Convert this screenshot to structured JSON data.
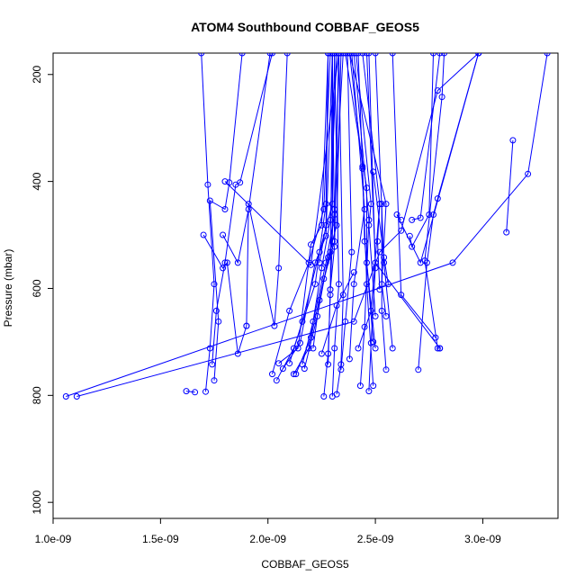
{
  "chart_data": {
    "type": "line",
    "title": "ATOM4 Southbound COBBAF_GEOS5",
    "xlabel": "COBBAF_GEOS5",
    "ylabel": "Pressure (mbar)",
    "xlim": [
      1e-09,
      3.35e-09
    ],
    "ylim": [
      1030,
      160
    ],
    "y_reversed": true,
    "grid": false,
    "legend": "none",
    "x_ticks": [
      {
        "value": 1e-09,
        "label": "1.0e-09"
      },
      {
        "value": 1.5e-09,
        "label": "1.5e-09"
      },
      {
        "value": 2e-09,
        "label": "2.0e-09"
      },
      {
        "value": 2.5e-09,
        "label": "2.5e-09"
      },
      {
        "value": 3e-09,
        "label": "3.0e-09"
      }
    ],
    "y_ticks": [
      {
        "value": 200,
        "label": "200"
      },
      {
        "value": 400,
        "label": "400"
      },
      {
        "value": 600,
        "label": "600"
      },
      {
        "value": 800,
        "label": "800"
      },
      {
        "value": 1000,
        "label": "1000"
      }
    ],
    "series_color": "#0000ff",
    "series": [
      {
        "x": [
          1.06e-09,
          2.86e-09,
          3.21e-09,
          3.3e-09
        ],
        "y": [
          802,
          552,
          386,
          160
        ]
      },
      {
        "x": [
          1.11e-09,
          2.4e-09,
          2.52e-09,
          2.62e-09,
          2.79e-09,
          2.98e-09
        ],
        "y": [
          802,
          662,
          532,
          492,
          230,
          160
        ]
      },
      {
        "x": [
          1.62e-09,
          1.66e-09
        ],
        "y": [
          792,
          794
        ]
      },
      {
        "x": [
          3.11e-09,
          3.14e-09
        ],
        "y": [
          495,
          323
        ]
      },
      {
        "x": [
          1.71e-09,
          1.73e-09,
          1.75e-09,
          1.72e-09,
          1.69e-09
        ],
        "y": [
          793,
          712,
          592,
          406,
          160
        ]
      },
      {
        "x": [
          1.75e-09,
          1.77e-09,
          1.73e-09,
          1.8e-09,
          1.82e-09,
          1.88e-09
        ],
        "y": [
          772,
          662,
          436,
          452,
          402,
          160
        ]
      },
      {
        "x": [
          1.74e-09,
          1.76e-09,
          1.8e-09,
          1.85e-09,
          1.87e-09,
          2.02e-09
        ],
        "y": [
          742,
          642,
          552,
          406,
          402,
          160
        ]
      },
      {
        "x": [
          1.7e-09,
          1.79e-09,
          1.81e-09,
          1.86e-09,
          1.9e-09
        ],
        "y": [
          500,
          562,
          552,
          722,
          670
        ]
      },
      {
        "x": [
          1.79e-09,
          1.86e-09,
          1.91e-09,
          2.01e-09
        ],
        "y": [
          500,
          552,
          452,
          160
        ]
      },
      {
        "x": [
          1.9e-09,
          1.91e-09,
          2.03e-09,
          2.05e-09,
          2.09e-09
        ],
        "y": [
          670,
          442,
          670,
          562,
          160
        ]
      },
      {
        "x": [
          1.8e-09,
          2.2e-09,
          2.33e-09
        ],
        "y": [
          400,
          556,
          160
        ]
      },
      {
        "x": [
          2.02e-09,
          2.1e-09,
          2.19e-09,
          2.26e-09,
          2.29e-09
        ],
        "y": [
          760,
          642,
          552,
          452,
          160
        ]
      },
      {
        "x": [
          2.04e-09,
          2.12e-09,
          2.22e-09,
          2.27e-09,
          2.28e-09
        ],
        "y": [
          772,
          712,
          592,
          442,
          160
        ]
      },
      {
        "x": [
          2.05e-09,
          2.14e-09,
          2.2e-09,
          2.25e-09,
          2.28e-09
        ],
        "y": [
          740,
          712,
          518,
          482,
          160
        ]
      },
      {
        "x": [
          2.07e-09,
          2.15e-09,
          2.22e-09,
          2.27e-09,
          2.3e-09
        ],
        "y": [
          750,
          702,
          552,
          502,
          160
        ]
      },
      {
        "x": [
          2.1e-09,
          2.16e-09,
          2.24e-09,
          2.3e-09,
          2.31e-09
        ],
        "y": [
          740,
          662,
          532,
          442,
          160
        ]
      },
      {
        "x": [
          2.12e-09,
          2.19e-09,
          2.25e-09,
          2.29e-09,
          2.32e-09
        ],
        "y": [
          760,
          712,
          562,
          472,
          160
        ]
      },
      {
        "x": [
          2.13e-09,
          2.2e-09,
          2.26e-09,
          2.31e-09,
          2.3e-09
        ],
        "y": [
          760,
          692,
          582,
          512,
          160
        ]
      },
      {
        "x": [
          2.16e-09,
          2.21e-09,
          2.27e-09,
          2.31e-09,
          2.33e-09
        ],
        "y": [
          742,
          662,
          552,
          462,
          160
        ]
      },
      {
        "x": [
          2.17e-09,
          2.23e-09,
          2.28e-09,
          2.32e-09,
          2.34e-09
        ],
        "y": [
          750,
          652,
          542,
          482,
          160
        ]
      },
      {
        "x": [
          2.21e-09,
          2.24e-09,
          2.29e-09,
          2.31e-09,
          2.35e-09
        ],
        "y": [
          712,
          622,
          532,
          452,
          160
        ]
      },
      {
        "x": [
          2.26e-09,
          2.28e-09,
          2.29e-09,
          2.3e-09
        ],
        "y": [
          802,
          722,
          612,
          160
        ]
      },
      {
        "x": [
          2.28e-09,
          2.29e-09,
          2.31e-09,
          2.33e-09
        ],
        "y": [
          742,
          602,
          522,
          160
        ]
      },
      {
        "x": [
          2.3e-09,
          2.31e-09,
          2.33e-09,
          2.31e-09
        ],
        "y": [
          802,
          712,
          592,
          160
        ]
      },
      {
        "x": [
          2.32e-09,
          2.34e-09,
          2.35e-09,
          2.33e-09
        ],
        "y": [
          798,
          742,
          612,
          160
        ]
      },
      {
        "x": [
          2.34e-09,
          2.36e-09,
          2.39e-09,
          2.37e-09
        ],
        "y": [
          752,
          662,
          532,
          160
        ]
      },
      {
        "x": [
          2.38e-09,
          2.4e-09,
          2.45e-09,
          2.39e-09
        ],
        "y": [
          732,
          592,
          452,
          160
        ]
      },
      {
        "x": [
          2.43e-09,
          2.45e-09,
          2.47e-09,
          2.4e-09
        ],
        "y": [
          782,
          672,
          472,
          160
        ]
      },
      {
        "x": [
          2.47e-09,
          2.48e-09,
          2.5e-09,
          2.47e-09
        ],
        "y": [
          792,
          702,
          562,
          160
        ]
      },
      {
        "x": [
          2.49e-09,
          2.46e-09,
          2.44e-09,
          2.42e-09
        ],
        "y": [
          782,
          592,
          376,
          160
        ]
      },
      {
        "x": [
          2.5e-09,
          2.45e-09,
          2.44e-09,
          2.38e-09
        ],
        "y": [
          712,
          512,
          372,
          160
        ]
      },
      {
        "x": [
          2.49e-09,
          2.46e-09,
          2.46e-09,
          2.36e-09
        ],
        "y": [
          700,
          552,
          412,
          160
        ]
      },
      {
        "x": [
          2.5e-09,
          2.47e-09,
          2.48e-09,
          2.41e-09
        ],
        "y": [
          652,
          482,
          442,
          160
        ]
      },
      {
        "x": [
          2.52e-09,
          2.51e-09,
          2.52e-09,
          2.44e-09
        ],
        "y": [
          602,
          512,
          442,
          160
        ]
      },
      {
        "x": [
          2.55e-09,
          2.53e-09,
          2.53e-09
        ],
        "y": [
          752,
          642,
          442
        ]
      },
      {
        "x": [
          2.55e-09,
          2.53e-09,
          2.55e-09,
          2.38e-09
        ],
        "y": [
          652,
          592,
          442,
          160
        ]
      },
      {
        "x": [
          2.56e-09,
          2.54e-09,
          2.49e-09
        ],
        "y": [
          592,
          542,
          382
        ]
      },
      {
        "x": [
          2.62e-09,
          2.6e-09,
          2.71e-09,
          2.98e-09
        ],
        "y": [
          472,
          462,
          552,
          160
        ]
      },
      {
        "x": [
          2.66e-09,
          2.67e-09,
          2.75e-09,
          2.77e-09
        ],
        "y": [
          502,
          522,
          462,
          160
        ]
      },
      {
        "x": [
          2.7e-09,
          2.74e-09,
          2.77e-09,
          2.79e-09,
          2.98e-09
        ],
        "y": [
          752,
          552,
          462,
          432,
          160
        ]
      },
      {
        "x": [
          2.67e-09,
          2.71e-09,
          2.8e-09
        ],
        "y": [
          472,
          468,
          160
        ]
      },
      {
        "x": [
          2.8e-09,
          2.79e-09,
          2.73e-09,
          2.81e-09,
          2.82e-09
        ],
        "y": [
          712,
          712,
          548,
          242,
          160
        ]
      },
      {
        "x": [
          2.78e-09,
          2.62e-09,
          2.58e-09
        ],
        "y": [
          692,
          612,
          160
        ]
      },
      {
        "x": [
          2.8e-09,
          2.5e-09,
          2.46e-09
        ],
        "y": [
          712,
          552,
          160
        ]
      },
      {
        "x": [
          2.58e-09,
          2.54e-09,
          2.5e-09
        ],
        "y": [
          712,
          552,
          160
        ]
      },
      {
        "x": [
          2.25e-09,
          2.32e-09,
          2.4e-09
        ],
        "y": [
          722,
          632,
          570
        ]
      },
      {
        "x": [
          2.42e-09,
          2.48e-09,
          2.52e-09
        ],
        "y": [
          712,
          642,
          442
        ]
      },
      {
        "x": [
          2.24e-09,
          2.27e-09,
          2.28e-09
        ],
        "y": [
          552,
          482,
          160
        ]
      },
      {
        "x": [
          2.29e-09,
          2.3e-09,
          2.3e-09
        ],
        "y": [
          602,
          512,
          160
        ]
      }
    ]
  }
}
